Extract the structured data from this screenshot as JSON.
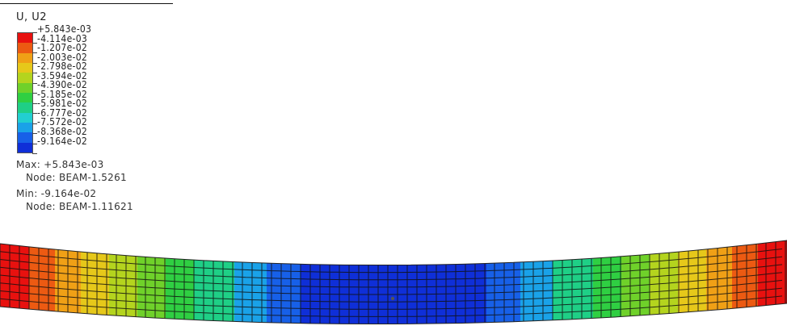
{
  "legend": {
    "title": "U, U2",
    "values": [
      "+5.843e-03",
      "-4.114e-03",
      "-1.207e-02",
      "-2.003e-02",
      "-2.798e-02",
      "-3.594e-02",
      "-4.390e-02",
      "-5.185e-02",
      "-5.981e-02",
      "-6.777e-02",
      "-7.572e-02",
      "-8.368e-02",
      "-9.164e-02"
    ],
    "colors": [
      "#e8110f",
      "#ec5a12",
      "#f0a016",
      "#e6c81a",
      "#b4d41e",
      "#6fd12a",
      "#2fcf42",
      "#1fcf86",
      "#22cfd0",
      "#1aa2e8",
      "#1760e8",
      "#0f2fd8"
    ]
  },
  "max": {
    "label": "Max: +5.843e-03",
    "node": "Node: BEAM-1.5261"
  },
  "min": {
    "label": "Min: -9.164e-02",
    "node": "Node: BEAM-1.11621"
  }
}
